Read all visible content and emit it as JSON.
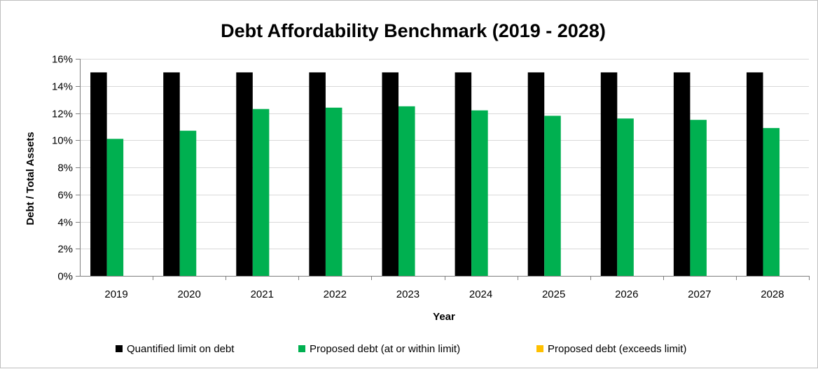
{
  "colors": {
    "limit": "#000000",
    "within": "#00b050",
    "exceeds": "#ffc000",
    "grid": "#d9d9d9",
    "axis": "#808080"
  },
  "chart_data": {
    "type": "bar",
    "title": "Debt Affordability Benchmark (2019 - 2028)",
    "xlabel": "Year",
    "ylabel": "Debt / Total Assets",
    "categories": [
      "2019",
      "2020",
      "2021",
      "2022",
      "2023",
      "2024",
      "2025",
      "2026",
      "2027",
      "2028"
    ],
    "series": [
      {
        "name": "Quantified limit on debt",
        "color": "#000000",
        "values": [
          0.15,
          0.15,
          0.15,
          0.15,
          0.15,
          0.15,
          0.15,
          0.15,
          0.15,
          0.15
        ]
      },
      {
        "name": "Proposed debt (at or within limit)",
        "color": "#00b050",
        "values": [
          0.101,
          0.107,
          0.123,
          0.124,
          0.125,
          0.122,
          0.118,
          0.116,
          0.115,
          0.109
        ]
      },
      {
        "name": "Proposed debt (exceeds limit)",
        "color": "#ffc000",
        "values": [
          0,
          0,
          0,
          0,
          0,
          0,
          0,
          0,
          0,
          0
        ]
      }
    ],
    "ylim": [
      0,
      0.16
    ],
    "yticks": [
      "0%",
      "2%",
      "4%",
      "6%",
      "8%",
      "10%",
      "12%",
      "14%",
      "16%"
    ],
    "grid": true,
    "legend_position": "bottom"
  }
}
